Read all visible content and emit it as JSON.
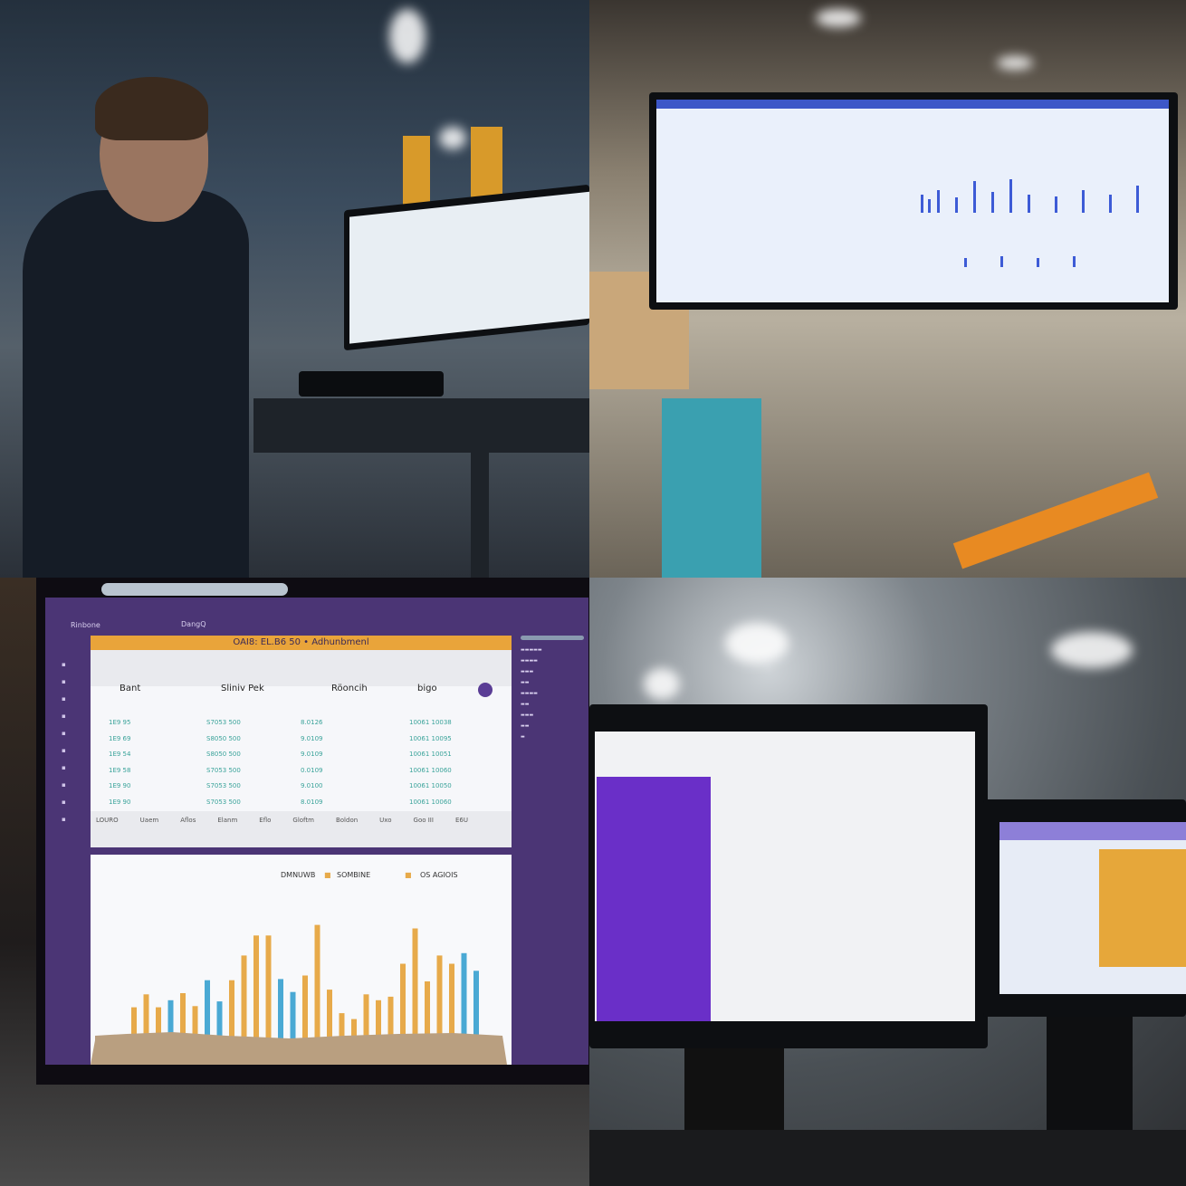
{
  "dashboard": {
    "banner": "OAI8: EL.B6 50 • Adhunbmenl",
    "nav": [
      "Rinbone",
      "DangQ"
    ],
    "columns": [
      "Bant",
      "Sliniv Pek",
      "Röoncih",
      "bigo"
    ],
    "rows": [
      [
        "1E9 95",
        "S7053 500",
        "8.0126",
        "10061 10038"
      ],
      [
        "1E9 69",
        "S8050 500",
        "9.0109",
        "10061 10095"
      ],
      [
        "1E9 54",
        "S8050 500",
        "9.0109",
        "10061 10051"
      ],
      [
        "1E9 58",
        "S7053 500",
        "0.0109",
        "10061 10060"
      ],
      [
        "1E9 90",
        "S7053 500",
        "9.0100",
        "10061 10050"
      ],
      [
        "1E9 90",
        "S7053 500",
        "8.0109",
        "10061 10060"
      ]
    ],
    "footer_tabs": [
      "LOURO",
      "Uaem",
      "Aflos",
      "Elanm",
      "Eflo",
      "Gloftm",
      "Boldon",
      "Uxo",
      "Goo III",
      "E6U"
    ]
  },
  "chart_data": {
    "type": "bar",
    "legend": [
      "DMNUWB",
      "SOMBINE",
      "OS AGIOIS"
    ],
    "colors": {
      "orange": "#e7aa4a",
      "blue": "#4aa9d4",
      "area": "#b99f80"
    },
    "values": [
      28,
      39,
      28,
      34,
      40,
      29,
      51,
      33,
      51,
      72,
      89,
      89,
      52,
      41,
      55,
      98,
      43,
      23,
      18,
      39,
      34,
      37,
      65,
      95,
      50,
      72,
      65,
      74,
      59
    ],
    "bar_colors": [
      "o",
      "o",
      "o",
      "b",
      "o",
      "o",
      "b",
      "b",
      "o",
      "o",
      "o",
      "o",
      "b",
      "b",
      "o",
      "o",
      "o",
      "o",
      "o",
      "o",
      "o",
      "o",
      "o",
      "o",
      "o",
      "o",
      "o",
      "b",
      "b"
    ],
    "ylim": [
      0,
      100
    ]
  }
}
